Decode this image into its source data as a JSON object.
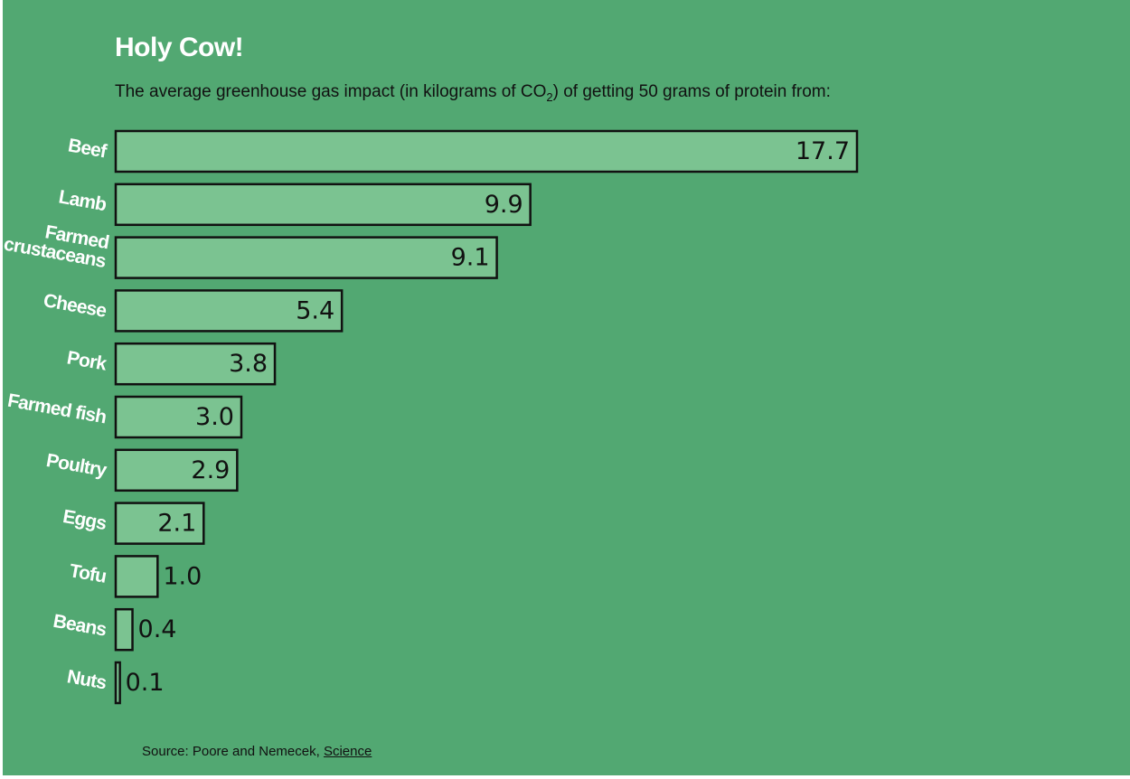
{
  "colors": {
    "background": "#52a872",
    "bar_fill": "#7bc391",
    "bar_stroke": "#111111",
    "title": "#ffffff",
    "category_label": "#ffffff",
    "text": "#111111"
  },
  "header": {
    "title": "Holy Cow!",
    "subtitle_before": "The average greenhouse gas impact (in kilograms of CO",
    "subtitle_sub": "2",
    "subtitle_after": ") of getting 50 grams of protein from:"
  },
  "footer": {
    "source_prefix": "Source: Poore and Nemecek, ",
    "source_link": "Science"
  },
  "chart_data": {
    "type": "bar",
    "orientation": "horizontal",
    "categories": [
      "Beef",
      "Lamb",
      "Farmed crustaceans",
      "Cheese",
      "Pork",
      "Farmed fish",
      "Poultry",
      "Eggs",
      "Tofu",
      "Beans",
      "Nuts"
    ],
    "values": [
      17.7,
      9.9,
      9.1,
      5.4,
      3.8,
      3.0,
      2.9,
      2.1,
      1.0,
      0.4,
      0.1
    ],
    "value_labels": [
      "17.7",
      "9.9",
      "9.1",
      "5.4",
      "3.8",
      "3.0",
      "2.9",
      "2.1",
      "1.0",
      "0.4",
      "0.1"
    ],
    "title": "Holy Cow!",
    "xlim": [
      0,
      17.7
    ],
    "grid": false,
    "legend": "none"
  }
}
